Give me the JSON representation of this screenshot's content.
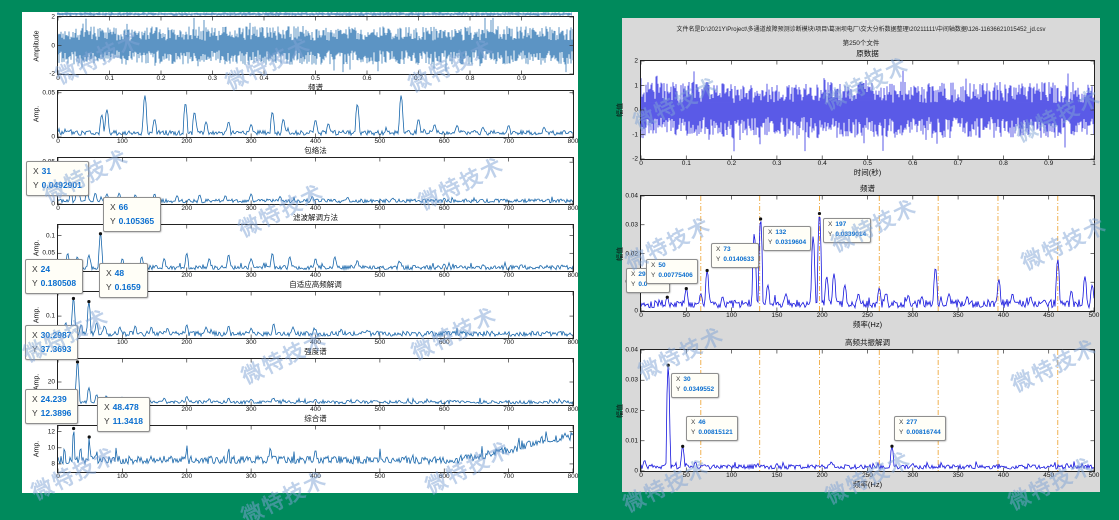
{
  "page": {
    "bg": "#008a5c"
  },
  "watermark": {
    "text": "微特技术",
    "color": "rgba(128,164,214,0.5)"
  },
  "left_figure": {
    "bg": "#ffffff",
    "line_color": "#1766ab",
    "datatip_value_color": "#0a6ecf"
  },
  "right_figure": {
    "bg": "#d9d9d9",
    "line_color": "#1515dd",
    "vline_color": "#efa93f",
    "title_line1": "文件名是D:\\2021Y\\Project\\多通道故障预测诊断模块\\项目\\葛洲坝电厂\\交大分析数据整理\\20211111\\中间轴数据\\126-11636621015452_jd.csv",
    "title_line2": "第250个文件"
  },
  "chart_data": [
    {
      "name": "left-clipped-strip",
      "type": "noise",
      "xlim": [
        0,
        1
      ],
      "ylim": [
        -1,
        1
      ],
      "amp": 0.9,
      "seed": 11,
      "color": "#1766ab",
      "xticks": [],
      "yticks": []
    },
    {
      "name": "left-time-waveform",
      "type": "noise",
      "xlim": [
        0,
        1
      ],
      "ylim": [
        -2,
        2
      ],
      "amp": 1.35,
      "seed": 21,
      "color": "#1766ab",
      "ylabel": "Amplitude",
      "xlabel": "频谱",
      "xticks": [
        "0",
        "0.1",
        "0.2",
        "0.3",
        "0.4",
        "0.5",
        "0.6",
        "0.7",
        "0.8",
        "0.9"
      ],
      "yticks": [
        "2",
        "0",
        "-2"
      ]
    },
    {
      "name": "left-envelope-spectrum",
      "type": "spectrum",
      "xlim": [
        0,
        800
      ],
      "ylim": [
        0,
        0.052
      ],
      "base": 0.0015,
      "noise": 0.006,
      "pw": 4,
      "seed": 31,
      "color": "#1766ab",
      "ylabel": "Amp.",
      "xlabel": "包络法",
      "xticks": [
        "0",
        "100",
        "200",
        "300",
        "400",
        "500",
        "600",
        "700",
        "800"
      ],
      "yticks": [
        "0.05",
        "0"
      ],
      "peaks": [
        [
          68,
          0.025
        ],
        [
          76,
          0.031
        ],
        [
          135,
          0.047
        ],
        [
          150,
          0.02
        ],
        [
          198,
          0.038
        ],
        [
          212,
          0.028
        ],
        [
          230,
          0.017
        ],
        [
          265,
          0.017
        ],
        [
          300,
          0.014
        ],
        [
          333,
          0.028
        ],
        [
          350,
          0.02
        ],
        [
          400,
          0.019
        ],
        [
          420,
          0.015
        ],
        [
          465,
          0.037
        ],
        [
          533,
          0.047
        ],
        [
          560,
          0.02
        ],
        [
          585,
          0.014
        ],
        [
          620,
          0.013
        ],
        [
          660,
          0.011
        ],
        [
          700,
          0.013
        ],
        [
          755,
          0.011
        ]
      ]
    },
    {
      "name": "left-filter-demodulation",
      "type": "spectrum",
      "xlim": [
        0,
        800
      ],
      "ylim": [
        0,
        0.055
      ],
      "base": 0.001,
      "noise": 0.005,
      "pw": 3.5,
      "seed": 41,
      "color": "#1766ab",
      "ylabel": "",
      "xlabel": "滤波解调方法",
      "xticks": [
        "0",
        "100",
        "200",
        "300",
        "400",
        "500",
        "600",
        "700",
        "800"
      ],
      "yticks": [
        "0.05",
        "0"
      ],
      "peaks": [
        [
          31,
          0.0493
        ],
        [
          20,
          0.014
        ],
        [
          45,
          0.017
        ],
        [
          58,
          0.013
        ],
        [
          76,
          0.012
        ],
        [
          95,
          0.013
        ],
        [
          120,
          0.011
        ],
        [
          150,
          0.012
        ],
        [
          185,
          0.01
        ],
        [
          220,
          0.011
        ],
        [
          260,
          0.01
        ],
        [
          300,
          0.012
        ],
        [
          345,
          0.009
        ],
        [
          395,
          0.009
        ],
        [
          450,
          0.008
        ],
        [
          520,
          0.007
        ],
        [
          600,
          0.007
        ],
        [
          680,
          0.006
        ],
        [
          745,
          0.006
        ]
      ],
      "markers": [
        [
          31,
          0.0493
        ]
      ],
      "datatips": [
        {
          "k1": "X",
          "v1": "31",
          "k2": "Y",
          "v2": "0.0492901",
          "pos": [
            -32,
            3
          ]
        }
      ]
    },
    {
      "name": "left-adaptive-hf-demodulation",
      "type": "spectrum",
      "xlim": [
        0,
        800
      ],
      "ylim": [
        0,
        0.13
      ],
      "base": 0.003,
      "noise": 0.013,
      "pw": 3.5,
      "seed": 51,
      "color": "#1766ab",
      "ylabel": "Amp.",
      "xlabel": "自适应高频解调",
      "xticks": [
        "0",
        "100",
        "200",
        "300",
        "400",
        "500",
        "600",
        "700",
        "800"
      ],
      "yticks": [
        "0.1",
        "0.05"
      ],
      "peaks": [
        [
          66,
          0.1054
        ],
        [
          15,
          0.05
        ],
        [
          30,
          0.04
        ],
        [
          48,
          0.045
        ],
        [
          100,
          0.035
        ],
        [
          130,
          0.04
        ],
        [
          165,
          0.035
        ],
        [
          200,
          0.05
        ],
        [
          235,
          0.035
        ],
        [
          265,
          0.046
        ],
        [
          300,
          0.035
        ],
        [
          333,
          0.05
        ],
        [
          360,
          0.04
        ],
        [
          400,
          0.035
        ],
        [
          430,
          0.04
        ],
        [
          465,
          0.03
        ],
        [
          530,
          0.028
        ],
        [
          600,
          0.02
        ],
        [
          660,
          0.018
        ],
        [
          720,
          0.018
        ]
      ],
      "markers": [
        [
          66,
          0.1054
        ]
      ],
      "datatips": [
        {
          "k1": "X",
          "v1": "66",
          "k2": "Y",
          "v2": "0.105365",
          "pos": [
            45,
            -28
          ]
        }
      ]
    },
    {
      "name": "left-intensity-spectrum",
      "type": "spectrum",
      "xlim": [
        0,
        800
      ],
      "ylim": [
        0,
        0.21
      ],
      "base": 0.006,
      "noise": 0.025,
      "pw": 3.5,
      "seed": 61,
      "color": "#1766ab",
      "ylabel": "Amp.",
      "xlabel": "强度谱",
      "xticks": [
        "0",
        "100",
        "200",
        "300",
        "400",
        "500",
        "600",
        "700",
        "800"
      ],
      "yticks": [
        "0.1"
      ],
      "peaks": [
        [
          24,
          0.1805
        ],
        [
          48,
          0.1659
        ],
        [
          12,
          0.07
        ],
        [
          36,
          0.06
        ],
        [
          60,
          0.07
        ],
        [
          72,
          0.055
        ],
        [
          96,
          0.05
        ],
        [
          120,
          0.055
        ],
        [
          145,
          0.05
        ],
        [
          170,
          0.045
        ],
        [
          200,
          0.06
        ],
        [
          230,
          0.05
        ],
        [
          265,
          0.055
        ],
        [
          300,
          0.045
        ],
        [
          335,
          0.065
        ],
        [
          365,
          0.05
        ],
        [
          400,
          0.04
        ],
        [
          440,
          0.04
        ],
        [
          480,
          0.035
        ]
      ],
      "markers": [
        [
          24,
          0.1805
        ],
        [
          48,
          0.1659
        ]
      ],
      "datatips": [
        {
          "k1": "X",
          "v1": "24",
          "k2": "Y",
          "v2": "0.180508",
          "pos": [
            -33,
            -33
          ]
        },
        {
          "k1": "X",
          "v1": "48",
          "k2": "Y",
          "v2": "0.1659",
          "pos": [
            41,
            -29
          ]
        }
      ]
    },
    {
      "name": "left-composite-spectrum",
      "type": "spectrum",
      "xlim": [
        0,
        800
      ],
      "ylim": [
        0,
        40
      ],
      "base": 0.8,
      "noise": 3.2,
      "pw": 3.5,
      "seed": 71,
      "color": "#1766ab",
      "ylabel": "Amp.",
      "xlabel": "综合谱",
      "xticks": [
        "0",
        "100",
        "200",
        "300",
        "400",
        "500",
        "600",
        "700",
        "800"
      ],
      "yticks": [
        "20"
      ],
      "peaks": [
        [
          30.3,
          37.37
        ],
        [
          24,
          12
        ],
        [
          48,
          15
        ],
        [
          60,
          9
        ],
        [
          75,
          8
        ],
        [
          100,
          7
        ],
        [
          130,
          6.5
        ],
        [
          165,
          6
        ],
        [
          200,
          7.5
        ],
        [
          235,
          5.5
        ],
        [
          265,
          6
        ],
        [
          300,
          5
        ],
        [
          335,
          6
        ],
        [
          400,
          5
        ],
        [
          465,
          4.5
        ],
        [
          530,
          4
        ],
        [
          620,
          3.5
        ],
        [
          700,
          3.5
        ]
      ],
      "markers": [
        [
          30.3,
          37.37
        ]
      ],
      "datatips": [
        {
          "k1": "X",
          "v1": "30.2987",
          "k2": "Y",
          "v2": "37.3693",
          "pos": [
            -33,
            -34
          ]
        }
      ]
    },
    {
      "name": "left-bottom-spectrum",
      "type": "spectrum",
      "xlim": [
        0,
        800
      ],
      "ylim": [
        7,
        12.7
      ],
      "base": 7.9,
      "noise": 1.1,
      "pw": 3.5,
      "seed": 81,
      "color": "#1766ab",
      "ylabel": "Amp.",
      "xlabel": "",
      "xticks": [
        "0",
        "100",
        "200",
        "300",
        "400",
        "500",
        "600",
        "700",
        "800"
      ],
      "yticks": [
        "12",
        "10",
        "8"
      ],
      "peaks": [
        [
          24.24,
          12.39
        ],
        [
          48.48,
          11.34
        ],
        [
          10,
          10.2
        ],
        [
          35,
          10.3
        ],
        [
          60,
          9.8
        ],
        [
          90,
          10.0
        ],
        [
          200,
          10.4
        ],
        [
          265,
          10.2
        ],
        [
          330,
          10.3
        ],
        [
          400,
          10.1
        ],
        [
          500,
          9.9
        ]
      ],
      "trend": [
        [
          0,
          0
        ],
        [
          620,
          0
        ],
        [
          700,
          1.2
        ],
        [
          760,
          2.6
        ],
        [
          800,
          2.9
        ]
      ],
      "markers": [
        [
          24.24,
          12.39
        ],
        [
          48.48,
          11.34
        ]
      ],
      "datatips": [
        {
          "k1": "X",
          "v1": "24.239",
          "k2": "Y",
          "v2": "12.3896",
          "pos": [
            -33,
            -37
          ]
        },
        {
          "k1": "X",
          "v1": "48.478",
          "k2": "Y",
          "v2": "11.3418",
          "pos": [
            39,
            -29
          ]
        }
      ]
    },
    {
      "name": "right-raw-data",
      "type": "noise",
      "xlim": [
        0,
        1
      ],
      "ylim": [
        -2,
        2
      ],
      "amp": 1.15,
      "seed": 91,
      "color": "#1515dd",
      "ylabel": "幅值",
      "xlabel": "时间(秒)",
      "title": "原数据",
      "xticks": [
        "0",
        "0.1",
        "0.2",
        "0.3",
        "0.4",
        "0.5",
        "0.6",
        "0.7",
        "0.8",
        "0.9",
        "1"
      ],
      "yticks": [
        "2",
        "1",
        "0",
        "-1",
        "-2"
      ]
    },
    {
      "name": "right-frequency-spectrum",
      "type": "spectrum",
      "xlim": [
        0,
        500
      ],
      "ylim": [
        0,
        0.04
      ],
      "base": 0.0008,
      "noise": 0.0032,
      "pw": 2.8,
      "seed": 101,
      "color": "#1515dd",
      "ylabel": "幅值",
      "xlabel": "频率(Hz)",
      "title": "频谱",
      "xticks": [
        "0",
        "50",
        "100",
        "150",
        "200",
        "250",
        "300",
        "350",
        "400",
        "450",
        "500"
      ],
      "yticks": [
        "0.04",
        "0.03",
        "0.02",
        "0.01",
        "0"
      ],
      "vlines": [
        66,
        131,
        197,
        263,
        328,
        394,
        460
      ],
      "peaks": [
        [
          29,
          0.0048
        ],
        [
          50,
          0.0078
        ],
        [
          66,
          0.006
        ],
        [
          73,
          0.0141
        ],
        [
          90,
          0.005
        ],
        [
          125,
          0.027
        ],
        [
          132,
          0.032
        ],
        [
          140,
          0.009
        ],
        [
          160,
          0.006
        ],
        [
          190,
          0.026
        ],
        [
          197,
          0.0339
        ],
        [
          205,
          0.012
        ],
        [
          213,
          0.013
        ],
        [
          225,
          0.009
        ],
        [
          240,
          0.006
        ],
        [
          263,
          0.008
        ],
        [
          270,
          0.006
        ],
        [
          295,
          0.0055
        ],
        [
          310,
          0.005
        ],
        [
          325,
          0.015
        ],
        [
          340,
          0.006
        ],
        [
          360,
          0.005
        ],
        [
          395,
          0.011
        ],
        [
          410,
          0.006
        ],
        [
          430,
          0.005
        ],
        [
          460,
          0.018
        ],
        [
          475,
          0.007
        ],
        [
          490,
          0.012
        ],
        [
          498,
          0.009
        ]
      ],
      "markers": [
        [
          29,
          0.0048
        ],
        [
          50,
          0.0078
        ],
        [
          73,
          0.0141
        ],
        [
          132,
          0.032
        ],
        [
          197,
          0.0339
        ]
      ],
      "datatips": [
        {
          "k1": "X",
          "v1": "29",
          "k2": "Y",
          "v2": "0.0",
          "pos": [
            -15,
            72
          ],
          "w": 34,
          "clip": true
        },
        {
          "k1": "X",
          "v1": "50",
          "k2": "Y",
          "v2": "0.00775406",
          "pos": [
            5,
            63
          ]
        },
        {
          "k1": "X",
          "v1": "73",
          "k2": "Y",
          "v2": "0.0140633",
          "pos": [
            70,
            47
          ]
        },
        {
          "k1": "X",
          "v1": "132",
          "k2": "Y",
          "v2": "0.0319604",
          "pos": [
            122,
            30
          ]
        },
        {
          "k1": "X",
          "v1": "197",
          "k2": "Y",
          "v2": "0.0339014",
          "pos": [
            182,
            22
          ]
        }
      ]
    },
    {
      "name": "right-hf-resonance-demodulation",
      "type": "spectrum",
      "xlim": [
        0,
        500
      ],
      "ylim": [
        0,
        0.04
      ],
      "base": 0.0005,
      "noise": 0.0016,
      "pw": 2.5,
      "seed": 111,
      "color": "#1515dd",
      "ylabel": "幅值",
      "xlabel": "频率(Hz)",
      "title": "高频共振解调",
      "xticks": [
        "0",
        "50",
        "100",
        "150",
        "200",
        "250",
        "300",
        "350",
        "400",
        "450",
        "500"
      ],
      "yticks": [
        "0.04",
        "0.03",
        "0.02",
        "0.01",
        "0"
      ],
      "vlines": [
        66,
        131,
        197,
        263,
        328,
        394,
        460
      ],
      "peaks": [
        [
          4,
          0.0035
        ],
        [
          30,
          0.03496
        ],
        [
          46,
          0.00815
        ],
        [
          60,
          0.003
        ],
        [
          150,
          0.0025
        ],
        [
          210,
          0.003
        ],
        [
          277,
          0.00817
        ],
        [
          300,
          0.0025
        ],
        [
          420,
          0.002
        ],
        [
          470,
          0.0025
        ]
      ],
      "markers": [
        [
          30,
          0.03496
        ],
        [
          46,
          0.00815
        ],
        [
          277,
          0.00817
        ]
      ],
      "datatips": [
        {
          "k1": "X",
          "v1": "30",
          "k2": "Y",
          "v2": "0.0349552",
          "pos": [
            30,
            23
          ]
        },
        {
          "k1": "X",
          "v1": "46",
          "k2": "Y",
          "v2": "0.00815121",
          "pos": [
            45,
            66
          ]
        },
        {
          "k1": "X",
          "v1": "277",
          "k2": "Y",
          "v2": "0.00816744",
          "pos": [
            253,
            66
          ]
        }
      ]
    }
  ]
}
